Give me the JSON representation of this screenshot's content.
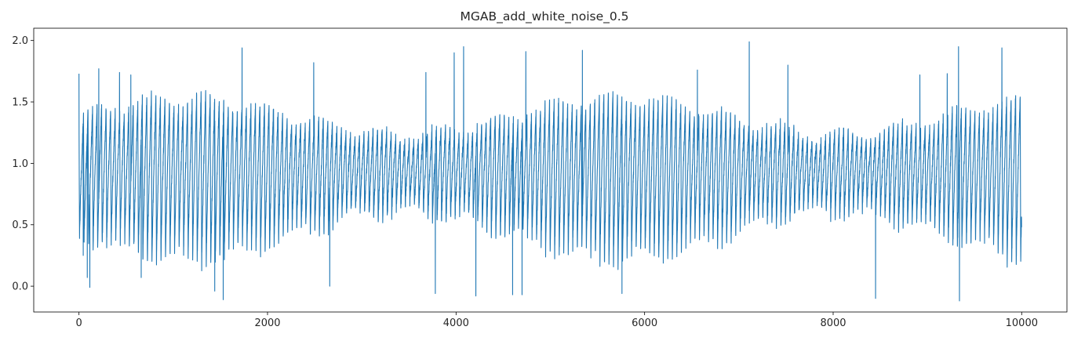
{
  "chart_data": {
    "type": "line",
    "title": "MGAB_add_white_noise_0.5",
    "xlabel": "",
    "ylabel": "",
    "xlim": [
      -480,
      10480
    ],
    "ylim": [
      -0.21,
      2.1
    ],
    "xticks": [
      0,
      2000,
      4000,
      6000,
      8000,
      10000
    ],
    "xtick_labels": [
      "0",
      "2000",
      "4000",
      "6000",
      "8000",
      "10000"
    ],
    "yticks": [
      0.0,
      0.5,
      1.0,
      1.5,
      2.0
    ],
    "ytick_labels": [
      "0.0",
      "0.5",
      "1.0",
      "1.5",
      "2.0"
    ],
    "grid": false,
    "legend": "none",
    "series": [
      {
        "color": "#1f77b4",
        "n_points": 10000,
        "x_start": 0,
        "x_end": 9999,
        "approx_cycle_length": 48,
        "range_min": -0.12,
        "range_max": 2.0,
        "typical_peak": 1.45,
        "typical_trough": 0.3,
        "notable_points": [
          {
            "x": 0,
            "y": 1.73
          },
          {
            "x": 45,
            "y": 0.25
          },
          {
            "x": 88,
            "y": 0.07
          },
          {
            "x": 115,
            "y": -0.01
          },
          {
            "x": 210,
            "y": 1.77
          },
          {
            "x": 430,
            "y": 1.74
          },
          {
            "x": 550,
            "y": 1.72
          },
          {
            "x": 660,
            "y": 0.07
          },
          {
            "x": 1440,
            "y": -0.04
          },
          {
            "x": 1530,
            "y": -0.11
          },
          {
            "x": 1730,
            "y": 1.94
          },
          {
            "x": 2490,
            "y": 1.82
          },
          {
            "x": 2660,
            "y": 0.0
          },
          {
            "x": 3680,
            "y": 1.74
          },
          {
            "x": 3780,
            "y": -0.06
          },
          {
            "x": 3980,
            "y": 1.9
          },
          {
            "x": 4080,
            "y": 1.95
          },
          {
            "x": 4210,
            "y": -0.08
          },
          {
            "x": 4600,
            "y": -0.07
          },
          {
            "x": 4700,
            "y": -0.07
          },
          {
            "x": 4740,
            "y": 1.91
          },
          {
            "x": 5340,
            "y": 1.92
          },
          {
            "x": 5760,
            "y": -0.06
          },
          {
            "x": 6560,
            "y": 1.76
          },
          {
            "x": 7110,
            "y": 1.99
          },
          {
            "x": 7520,
            "y": 1.8
          },
          {
            "x": 8450,
            "y": -0.1
          },
          {
            "x": 8920,
            "y": 1.72
          },
          {
            "x": 9210,
            "y": 1.73
          },
          {
            "x": 9330,
            "y": 1.95
          },
          {
            "x": 9340,
            "y": -0.12
          },
          {
            "x": 9790,
            "y": 1.94
          },
          {
            "x": 9999,
            "y": 0.48
          }
        ]
      }
    ]
  }
}
